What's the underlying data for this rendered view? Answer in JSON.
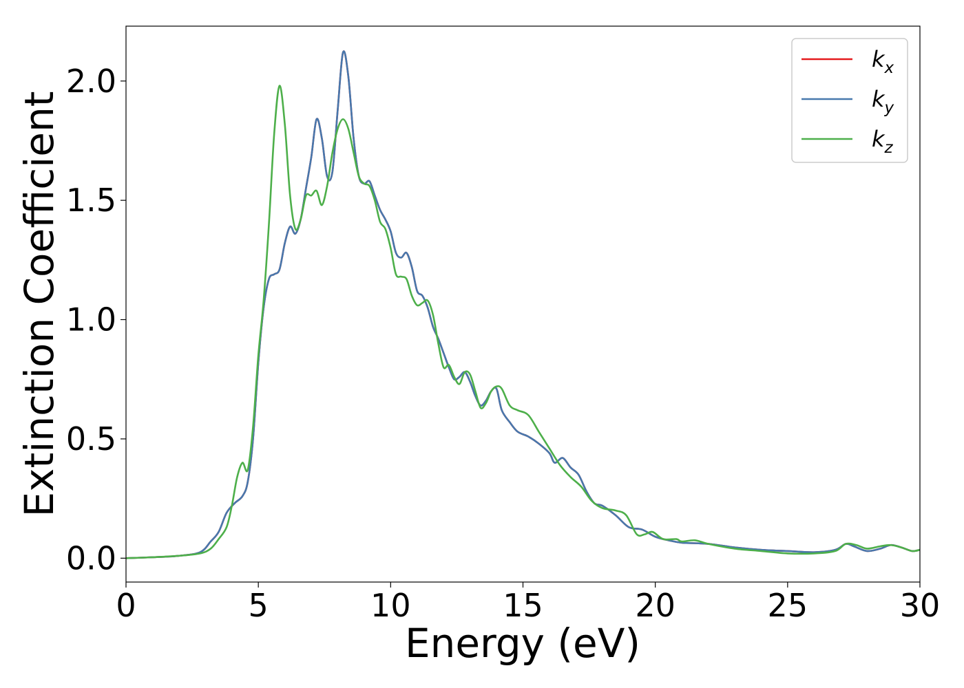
{
  "chart_data": {
    "type": "line",
    "title": "",
    "xlabel": "Energy (eV)",
    "ylabel": "Extinction Coefficient",
    "xlim": [
      0,
      30
    ],
    "ylim": [
      -0.1,
      2.23
    ],
    "xticks": [
      "0",
      "5",
      "10",
      "15",
      "20",
      "25",
      "30"
    ],
    "yticks": [
      "0.0",
      "0.5",
      "1.0",
      "1.5",
      "2.0"
    ],
    "grid": false,
    "legend_position": "top-right",
    "series": [
      {
        "name": "k_x",
        "legend_base": "k",
        "legend_sub": "x",
        "color": "#e41a1c",
        "points": [
          [
            0,
            0
          ],
          [
            1,
            0.004
          ],
          [
            2,
            0.01
          ],
          [
            2.8,
            0.025
          ],
          [
            3.2,
            0.07
          ],
          [
            3.5,
            0.11
          ],
          [
            3.8,
            0.19
          ],
          [
            4.1,
            0.23
          ],
          [
            4.4,
            0.26
          ],
          [
            4.6,
            0.32
          ],
          [
            4.8,
            0.5
          ],
          [
            5.0,
            0.82
          ],
          [
            5.2,
            1.05
          ],
          [
            5.4,
            1.17
          ],
          [
            5.6,
            1.19
          ],
          [
            5.8,
            1.21
          ],
          [
            6.0,
            1.32
          ],
          [
            6.2,
            1.39
          ],
          [
            6.4,
            1.36
          ],
          [
            6.6,
            1.42
          ],
          [
            6.8,
            1.55
          ],
          [
            7.0,
            1.68
          ],
          [
            7.2,
            1.84
          ],
          [
            7.4,
            1.76
          ],
          [
            7.6,
            1.6
          ],
          [
            7.8,
            1.62
          ],
          [
            8.0,
            1.88
          ],
          [
            8.2,
            2.12
          ],
          [
            8.4,
            2.02
          ],
          [
            8.6,
            1.76
          ],
          [
            8.8,
            1.6
          ],
          [
            9.0,
            1.57
          ],
          [
            9.2,
            1.58
          ],
          [
            9.4,
            1.52
          ],
          [
            9.6,
            1.46
          ],
          [
            9.8,
            1.42
          ],
          [
            10.0,
            1.37
          ],
          [
            10.2,
            1.28
          ],
          [
            10.4,
            1.26
          ],
          [
            10.6,
            1.28
          ],
          [
            10.8,
            1.22
          ],
          [
            11.0,
            1.12
          ],
          [
            11.2,
            1.1
          ],
          [
            11.4,
            1.05
          ],
          [
            11.6,
            0.97
          ],
          [
            11.8,
            0.92
          ],
          [
            12.0,
            0.86
          ],
          [
            12.2,
            0.8
          ],
          [
            12.4,
            0.75
          ],
          [
            12.6,
            0.76
          ],
          [
            12.8,
            0.78
          ],
          [
            13.0,
            0.74
          ],
          [
            13.2,
            0.68
          ],
          [
            13.4,
            0.64
          ],
          [
            13.6,
            0.66
          ],
          [
            13.8,
            0.7
          ],
          [
            14.0,
            0.71
          ],
          [
            14.2,
            0.62
          ],
          [
            14.5,
            0.57
          ],
          [
            14.8,
            0.53
          ],
          [
            15.2,
            0.51
          ],
          [
            15.6,
            0.48
          ],
          [
            16.0,
            0.44
          ],
          [
            16.2,
            0.4
          ],
          [
            16.5,
            0.42
          ],
          [
            16.8,
            0.38
          ],
          [
            17.1,
            0.35
          ],
          [
            17.4,
            0.28
          ],
          [
            17.7,
            0.23
          ],
          [
            18.0,
            0.22
          ],
          [
            18.5,
            0.18
          ],
          [
            19.0,
            0.13
          ],
          [
            19.5,
            0.12
          ],
          [
            20.0,
            0.09
          ],
          [
            20.5,
            0.075
          ],
          [
            21.0,
            0.065
          ],
          [
            22.0,
            0.06
          ],
          [
            23.0,
            0.045
          ],
          [
            24.0,
            0.035
          ],
          [
            25.0,
            0.03
          ],
          [
            26.0,
            0.025
          ],
          [
            26.8,
            0.035
          ],
          [
            27.2,
            0.06
          ],
          [
            27.5,
            0.05
          ],
          [
            28.0,
            0.03
          ],
          [
            28.5,
            0.04
          ],
          [
            28.9,
            0.055
          ],
          [
            29.3,
            0.045
          ],
          [
            29.7,
            0.03
          ],
          [
            30.0,
            0.035
          ]
        ]
      },
      {
        "name": "k_y",
        "legend_base": "k",
        "legend_sub": "y",
        "color": "#4778ad",
        "points": [
          [
            0,
            0
          ],
          [
            1,
            0.004
          ],
          [
            2,
            0.01
          ],
          [
            2.8,
            0.025
          ],
          [
            3.2,
            0.07
          ],
          [
            3.5,
            0.11
          ],
          [
            3.8,
            0.19
          ],
          [
            4.1,
            0.23
          ],
          [
            4.4,
            0.26
          ],
          [
            4.6,
            0.32
          ],
          [
            4.8,
            0.5
          ],
          [
            5.0,
            0.82
          ],
          [
            5.2,
            1.05
          ],
          [
            5.4,
            1.17
          ],
          [
            5.6,
            1.19
          ],
          [
            5.8,
            1.21
          ],
          [
            6.0,
            1.32
          ],
          [
            6.2,
            1.39
          ],
          [
            6.4,
            1.36
          ],
          [
            6.6,
            1.42
          ],
          [
            6.8,
            1.55
          ],
          [
            7.0,
            1.68
          ],
          [
            7.2,
            1.84
          ],
          [
            7.4,
            1.76
          ],
          [
            7.6,
            1.6
          ],
          [
            7.8,
            1.62
          ],
          [
            8.0,
            1.88
          ],
          [
            8.2,
            2.12
          ],
          [
            8.4,
            2.02
          ],
          [
            8.6,
            1.76
          ],
          [
            8.8,
            1.6
          ],
          [
            9.0,
            1.57
          ],
          [
            9.2,
            1.58
          ],
          [
            9.4,
            1.52
          ],
          [
            9.6,
            1.46
          ],
          [
            9.8,
            1.42
          ],
          [
            10.0,
            1.37
          ],
          [
            10.2,
            1.28
          ],
          [
            10.4,
            1.26
          ],
          [
            10.6,
            1.28
          ],
          [
            10.8,
            1.22
          ],
          [
            11.0,
            1.12
          ],
          [
            11.2,
            1.1
          ],
          [
            11.4,
            1.05
          ],
          [
            11.6,
            0.97
          ],
          [
            11.8,
            0.92
          ],
          [
            12.0,
            0.86
          ],
          [
            12.2,
            0.8
          ],
          [
            12.4,
            0.75
          ],
          [
            12.6,
            0.76
          ],
          [
            12.8,
            0.78
          ],
          [
            13.0,
            0.74
          ],
          [
            13.2,
            0.68
          ],
          [
            13.4,
            0.64
          ],
          [
            13.6,
            0.66
          ],
          [
            13.8,
            0.7
          ],
          [
            14.0,
            0.71
          ],
          [
            14.2,
            0.62
          ],
          [
            14.5,
            0.57
          ],
          [
            14.8,
            0.53
          ],
          [
            15.2,
            0.51
          ],
          [
            15.6,
            0.48
          ],
          [
            16.0,
            0.44
          ],
          [
            16.2,
            0.4
          ],
          [
            16.5,
            0.42
          ],
          [
            16.8,
            0.38
          ],
          [
            17.1,
            0.35
          ],
          [
            17.4,
            0.28
          ],
          [
            17.7,
            0.23
          ],
          [
            18.0,
            0.22
          ],
          [
            18.5,
            0.18
          ],
          [
            19.0,
            0.13
          ],
          [
            19.5,
            0.12
          ],
          [
            20.0,
            0.09
          ],
          [
            20.5,
            0.075
          ],
          [
            21.0,
            0.065
          ],
          [
            22.0,
            0.06
          ],
          [
            23.0,
            0.045
          ],
          [
            24.0,
            0.035
          ],
          [
            25.0,
            0.03
          ],
          [
            26.0,
            0.025
          ],
          [
            26.8,
            0.035
          ],
          [
            27.2,
            0.06
          ],
          [
            27.5,
            0.05
          ],
          [
            28.0,
            0.03
          ],
          [
            28.5,
            0.04
          ],
          [
            28.9,
            0.055
          ],
          [
            29.3,
            0.045
          ],
          [
            29.7,
            0.03
          ],
          [
            30.0,
            0.035
          ]
        ]
      },
      {
        "name": "k_z",
        "legend_base": "k",
        "legend_sub": "z",
        "color": "#4daf4a",
        "points": [
          [
            0,
            0
          ],
          [
            1,
            0.004
          ],
          [
            2,
            0.01
          ],
          [
            2.8,
            0.02
          ],
          [
            3.2,
            0.04
          ],
          [
            3.5,
            0.08
          ],
          [
            3.8,
            0.13
          ],
          [
            4.0,
            0.22
          ],
          [
            4.2,
            0.34
          ],
          [
            4.4,
            0.4
          ],
          [
            4.6,
            0.37
          ],
          [
            4.8,
            0.55
          ],
          [
            5.0,
            0.85
          ],
          [
            5.2,
            1.08
          ],
          [
            5.4,
            1.4
          ],
          [
            5.6,
            1.78
          ],
          [
            5.8,
            1.98
          ],
          [
            6.0,
            1.82
          ],
          [
            6.2,
            1.52
          ],
          [
            6.4,
            1.38
          ],
          [
            6.6,
            1.42
          ],
          [
            6.8,
            1.52
          ],
          [
            7.0,
            1.52
          ],
          [
            7.2,
            1.54
          ],
          [
            7.4,
            1.48
          ],
          [
            7.6,
            1.56
          ],
          [
            7.8,
            1.7
          ],
          [
            8.0,
            1.8
          ],
          [
            8.2,
            1.84
          ],
          [
            8.4,
            1.8
          ],
          [
            8.6,
            1.7
          ],
          [
            8.8,
            1.6
          ],
          [
            9.0,
            1.57
          ],
          [
            9.2,
            1.56
          ],
          [
            9.4,
            1.5
          ],
          [
            9.6,
            1.41
          ],
          [
            9.8,
            1.38
          ],
          [
            10.0,
            1.3
          ],
          [
            10.2,
            1.19
          ],
          [
            10.4,
            1.18
          ],
          [
            10.6,
            1.17
          ],
          [
            10.8,
            1.1
          ],
          [
            11.0,
            1.06
          ],
          [
            11.2,
            1.07
          ],
          [
            11.4,
            1.08
          ],
          [
            11.6,
            1.02
          ],
          [
            11.8,
            0.9
          ],
          [
            12.0,
            0.8
          ],
          [
            12.2,
            0.81
          ],
          [
            12.4,
            0.76
          ],
          [
            12.6,
            0.73
          ],
          [
            12.8,
            0.78
          ],
          [
            13.0,
            0.77
          ],
          [
            13.2,
            0.7
          ],
          [
            13.4,
            0.63
          ],
          [
            13.6,
            0.65
          ],
          [
            13.8,
            0.7
          ],
          [
            14.0,
            0.72
          ],
          [
            14.2,
            0.71
          ],
          [
            14.5,
            0.64
          ],
          [
            14.8,
            0.62
          ],
          [
            15.2,
            0.6
          ],
          [
            15.6,
            0.53
          ],
          [
            16.0,
            0.46
          ],
          [
            16.4,
            0.39
          ],
          [
            16.8,
            0.34
          ],
          [
            17.2,
            0.3
          ],
          [
            17.6,
            0.24
          ],
          [
            18.0,
            0.21
          ],
          [
            18.5,
            0.2
          ],
          [
            18.9,
            0.18
          ],
          [
            19.3,
            0.1
          ],
          [
            19.6,
            0.1
          ],
          [
            19.9,
            0.11
          ],
          [
            20.3,
            0.08
          ],
          [
            20.8,
            0.08
          ],
          [
            21.0,
            0.07
          ],
          [
            21.5,
            0.075
          ],
          [
            22.0,
            0.06
          ],
          [
            23.0,
            0.04
          ],
          [
            24.0,
            0.03
          ],
          [
            25.0,
            0.02
          ],
          [
            26.0,
            0.02
          ],
          [
            26.8,
            0.03
          ],
          [
            27.2,
            0.06
          ],
          [
            27.6,
            0.055
          ],
          [
            28.0,
            0.04
          ],
          [
            28.5,
            0.05
          ],
          [
            28.9,
            0.055
          ],
          [
            29.3,
            0.045
          ],
          [
            29.7,
            0.03
          ],
          [
            30.0,
            0.035
          ]
        ]
      }
    ]
  }
}
